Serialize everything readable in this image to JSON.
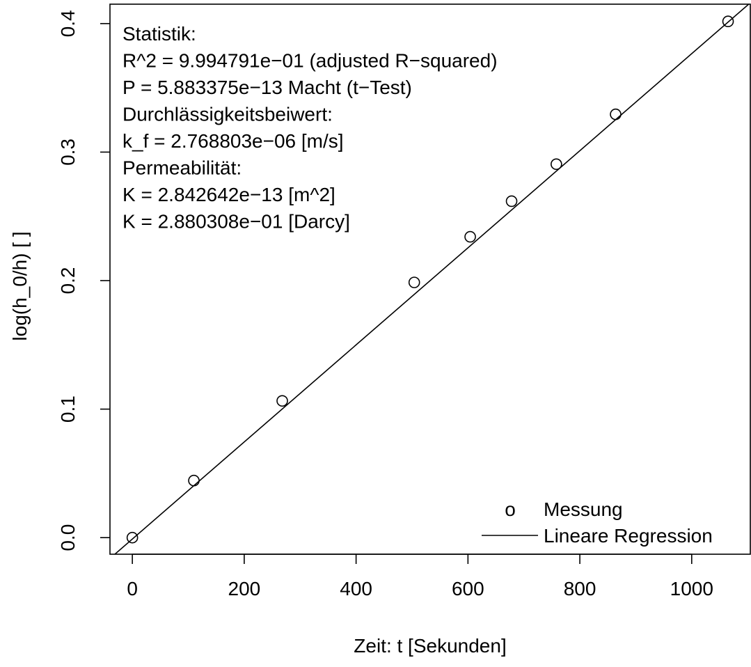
{
  "chart_data": {
    "type": "scatter",
    "title": "",
    "xlabel": "Zeit: t [Sekunden]",
    "ylabel": "log(h_0/h) [ ]",
    "xlim": [
      -40,
      1106
    ],
    "ylim": [
      -0.0129,
      0.4151
    ],
    "x_ticks": [
      0,
      200,
      400,
      600,
      800,
      1000
    ],
    "y_ticks": [
      0.0,
      0.1,
      0.2,
      0.3,
      0.4
    ],
    "x_tick_labels": [
      "0",
      "200",
      "400",
      "600",
      "800",
      "1000"
    ],
    "y_tick_labels": [
      "0.0",
      "0.1",
      "0.2",
      "0.3",
      "0.4"
    ],
    "grid": false,
    "series": [
      {
        "name": "Messung",
        "type": "scatter",
        "marker": "open-circle",
        "x": [
          0,
          110,
          268,
          504,
          604,
          678,
          758,
          864,
          1065
        ],
        "y": [
          0.0,
          0.0444,
          0.1064,
          0.1986,
          0.2341,
          0.2618,
          0.2906,
          0.3294,
          0.4017
        ]
      },
      {
        "name": "Lineare Regression",
        "type": "line",
        "intercept": -0.0011,
        "slope": 0.0003777
      }
    ],
    "legend": {
      "position": "bottom-right",
      "marker_symbol": "o",
      "entries": [
        "Messung",
        "Lineare Regression"
      ]
    },
    "annotations": [
      "Statistik:",
      "R^2 = 9.994791e−01 (adjusted R−squared)",
      "P = 5.883375e−13 Macht (t−Test)",
      "Durchlässigkeitsbeiwert:",
      "k_f = 2.768803e−06 [m/s]",
      "Permeabilität:",
      "K = 2.842642e−13 [m^2]",
      "K = 2.880308e−01 [Darcy]"
    ]
  }
}
